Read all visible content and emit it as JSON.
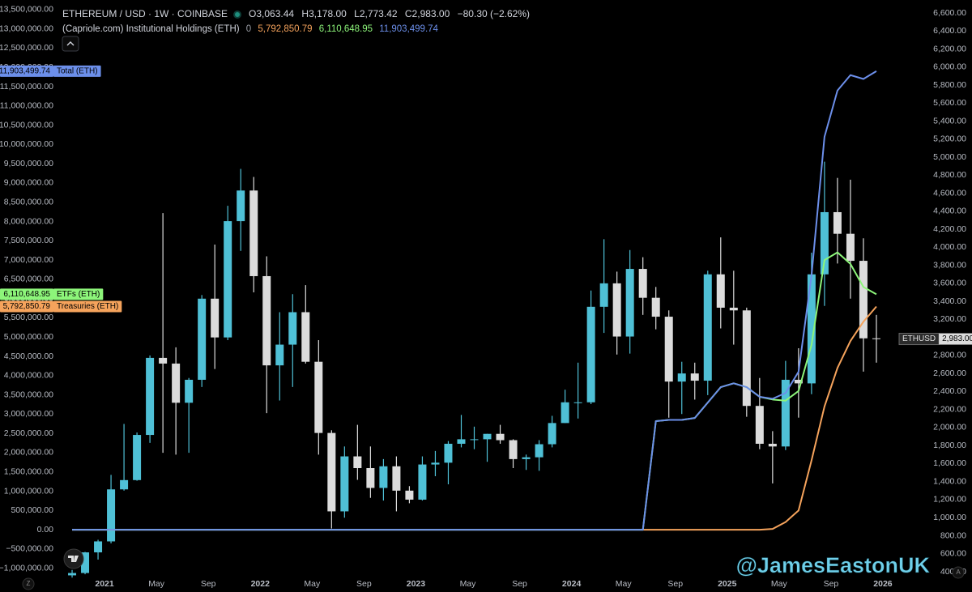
{
  "chart_data": [
    {
      "type": "candlestick",
      "title": "ETHEREUM / USD · 1W · COINBASE",
      "ohlc_labels": [
        "O3,063.44",
        "H3,178.00",
        "L2,773.42",
        "C2,983.00"
      ],
      "change_label": "−80.30 (−2.62%)",
      "name": "ETHUSD",
      "price_label": "2,983.00",
      "up_color": "#4fc0d6",
      "down_color": "#dcdcdc",
      "axis_side": "right",
      "x": [
        "2020-10",
        "2020-11",
        "2020-12",
        "2021-01",
        "2021-02",
        "2021-03",
        "2021-04",
        "2021-05",
        "2021-06",
        "2021-07",
        "2021-08",
        "2021-09",
        "2021-10",
        "2021-11",
        "2021-12",
        "2022-01",
        "2022-02",
        "2022-03",
        "2022-04",
        "2022-05",
        "2022-06",
        "2022-07",
        "2022-08",
        "2022-09",
        "2022-10",
        "2022-11",
        "2022-12",
        "2023-01",
        "2023-02",
        "2023-03",
        "2023-04",
        "2023-05",
        "2023-06",
        "2023-07",
        "2023-08",
        "2023-09",
        "2023-10",
        "2023-11",
        "2023-12",
        "2024-01",
        "2024-02",
        "2024-03",
        "2024-04",
        "2024-05",
        "2024-06",
        "2024-07",
        "2024-08",
        "2024-09",
        "2024-10",
        "2024-11",
        "2024-12",
        "2025-01",
        "2025-02",
        "2025-03",
        "2025-04",
        "2025-05",
        "2025-06",
        "2025-07",
        "2025-08",
        "2025-09",
        "2025-10",
        "2025-11",
        "2025-12"
      ],
      "open": [
        360,
        386,
        615,
        737,
        1314,
        1417,
        1918,
        2773,
        2710,
        2275,
        2530,
        3430,
        3000,
        4290,
        4630,
        3680,
        2690,
        2920,
        3280,
        2730,
        1940,
        1070,
        1680,
        1550,
        1330,
        1570,
        1300,
        1200,
        1590,
        1610,
        1820,
        1870,
        1870,
        1930,
        1860,
        1650,
        1670,
        1815,
        2050,
        2280,
        2280,
        3340,
        3600,
        3010,
        3760,
        3440,
        3230,
        2510,
        2600,
        2520,
        3700,
        3330,
        3300,
        2240,
        1820,
        1790,
        2530,
        2490,
        3700,
        4390,
        4150,
        3850,
        2990
      ],
      "high": [
        420,
        620,
        755,
        1475,
        2040,
        1945,
        2800,
        4380,
        2890,
        2550,
        3470,
        4030,
        4460,
        4870,
        4780,
        3900,
        3280,
        3480,
        3580,
        2970,
        1970,
        1790,
        2030,
        1790,
        1650,
        1680,
        1350,
        1680,
        1740,
        1850,
        2140,
        2010,
        1930,
        2030,
        1870,
        1700,
        1860,
        2130,
        2420,
        2720,
        3520,
        4090,
        3730,
        3970,
        3890,
        3560,
        3300,
        2730,
        2720,
        3740,
        4110,
        3740,
        3330,
        2550,
        1960,
        2740,
        2880,
        3940,
        4950,
        4770,
        4750,
        4100,
        3250
      ],
      "low": [
        335,
        372,
        535,
        715,
        1300,
        1410,
        1830,
        1720,
        1700,
        1720,
        2450,
        2650,
        2970,
        3960,
        3500,
        2160,
        2300,
        2450,
        2710,
        1700,
        880,
        1000,
        1420,
        1220,
        1190,
        1070,
        1160,
        1190,
        1460,
        1370,
        1780,
        1760,
        1620,
        1820,
        1550,
        1530,
        1520,
        1780,
        2050,
        2100,
        2260,
        3050,
        2810,
        2820,
        3250,
        3090,
        2110,
        2150,
        2310,
        2360,
        3100,
        2920,
        2120,
        1760,
        1380,
        1750,
        2110,
        2370,
        3350,
        3820,
        3430,
        2620,
        2720
      ],
      "close": [
        386,
        615,
        737,
        1314,
        1417,
        1918,
        2773,
        2710,
        2275,
        2530,
        3430,
        3000,
        4290,
        4630,
        3680,
        2690,
        2920,
        3280,
        2730,
        1940,
        1070,
        1680,
        1550,
        1330,
        1570,
        1300,
        1200,
        1590,
        1610,
        1820,
        1870,
        1870,
        1930,
        1860,
        1650,
        1670,
        1815,
        2050,
        2280,
        2280,
        3340,
        3600,
        3010,
        3760,
        3440,
        3230,
        2510,
        2600,
        2520,
        3700,
        3330,
        3300,
        2240,
        1820,
        1790,
        2530,
        2490,
        3700,
        4390,
        4150,
        3850,
        2990,
        2983
      ],
      "xlim": [
        "2020-09",
        "2026-03"
      ],
      "xticks": [
        {
          "value": "2021-01",
          "label": "2021"
        },
        {
          "value": "2021-05",
          "label": "May"
        },
        {
          "value": "2021-09",
          "label": "Sep"
        },
        {
          "value": "2022-01",
          "label": "2022"
        },
        {
          "value": "2022-05",
          "label": "May"
        },
        {
          "value": "2022-09",
          "label": "Sep"
        },
        {
          "value": "2023-01",
          "label": "2023"
        },
        {
          "value": "2023-05",
          "label": "May"
        },
        {
          "value": "2023-09",
          "label": "Sep"
        },
        {
          "value": "2024-01",
          "label": "2024"
        },
        {
          "value": "2024-05",
          "label": "May"
        },
        {
          "value": "2024-09",
          "label": "Sep"
        },
        {
          "value": "2025-01",
          "label": "2025"
        },
        {
          "value": "2025-05",
          "label": "May"
        },
        {
          "value": "2025-09",
          "label": "Sep"
        },
        {
          "value": "2026-01",
          "label": "2026"
        }
      ],
      "ylim": [
        319,
        6744
      ],
      "yticks": [
        {
          "value": 400,
          "label": "400.00"
        },
        {
          "value": 600,
          "label": "600.00"
        },
        {
          "value": 800,
          "label": "800.00"
        },
        {
          "value": 1000,
          "label": "1,000.00"
        },
        {
          "value": 1200,
          "label": "1,200.00"
        },
        {
          "value": 1400,
          "label": "1,400.00"
        },
        {
          "value": 1600,
          "label": "1,600.00"
        },
        {
          "value": 1800,
          "label": "1,800.00"
        },
        {
          "value": 2000,
          "label": "2,000.00"
        },
        {
          "value": 2200,
          "label": "2,200.00"
        },
        {
          "value": 2400,
          "label": "2,400.00"
        },
        {
          "value": 2600,
          "label": "2,600.00"
        },
        {
          "value": 2800,
          "label": "2,800.00"
        },
        {
          "value": 3000,
          "label": "3,000.00"
        },
        {
          "value": 3200,
          "label": "3,200.00"
        },
        {
          "value": 3400,
          "label": "3,400.00"
        },
        {
          "value": 3600,
          "label": "3,600.00"
        },
        {
          "value": 3800,
          "label": "3,800.00"
        },
        {
          "value": 4000,
          "label": "4,000.00"
        },
        {
          "value": 4200,
          "label": "4,200.00"
        },
        {
          "value": 4400,
          "label": "4,400.00"
        },
        {
          "value": 4600,
          "label": "4,600.00"
        },
        {
          "value": 4800,
          "label": "4,800.00"
        },
        {
          "value": 5000,
          "label": "5,000.00"
        },
        {
          "value": 5200,
          "label": "5,200.00"
        },
        {
          "value": 5400,
          "label": "5,400.00"
        },
        {
          "value": 5600,
          "label": "5,600.00"
        },
        {
          "value": 5800,
          "label": "5,800.00"
        },
        {
          "value": 6000,
          "label": "6,000.00"
        },
        {
          "value": 6200,
          "label": "6,200.00"
        },
        {
          "value": 6400,
          "label": "6,400.00"
        },
        {
          "value": 6600,
          "label": "6,600.00"
        }
      ]
    },
    {
      "type": "line",
      "title": "(Capriole.com) Institutional Holdings (ETH)",
      "extra_value_label": "0",
      "axis_side": "left",
      "x": [
        "2020-10",
        "2020-11",
        "2020-12",
        "2021-01",
        "2021-02",
        "2021-03",
        "2021-04",
        "2021-05",
        "2021-06",
        "2021-07",
        "2021-08",
        "2021-09",
        "2021-10",
        "2021-11",
        "2021-12",
        "2022-01",
        "2022-02",
        "2022-03",
        "2022-04",
        "2022-05",
        "2022-06",
        "2022-07",
        "2022-08",
        "2022-09",
        "2022-10",
        "2022-11",
        "2022-12",
        "2023-01",
        "2023-02",
        "2023-03",
        "2023-04",
        "2023-05",
        "2023-06",
        "2023-07",
        "2023-08",
        "2023-09",
        "2023-10",
        "2023-11",
        "2023-12",
        "2024-01",
        "2024-02",
        "2024-03",
        "2024-04",
        "2024-05",
        "2024-06",
        "2024-07",
        "2024-08",
        "2024-09",
        "2024-10",
        "2024-11",
        "2024-12",
        "2025-01",
        "2025-02",
        "2025-03",
        "2025-04",
        "2025-05",
        "2025-06",
        "2025-07",
        "2025-08",
        "2025-09",
        "2025-10",
        "2025-11",
        "2025-12"
      ],
      "xlim": [
        "2020-09",
        "2026-03"
      ],
      "series": [
        {
          "name": "Treasuries (ETH)",
          "color": "#f5a35c",
          "last_label": "5,792,850.79",
          "values": [
            0,
            0,
            0,
            0,
            0,
            0,
            0,
            0,
            0,
            0,
            0,
            0,
            0,
            0,
            0,
            0,
            0,
            0,
            0,
            0,
            0,
            0,
            0,
            0,
            0,
            0,
            0,
            0,
            0,
            0,
            0,
            0,
            0,
            0,
            0,
            0,
            0,
            0,
            0,
            0,
            0,
            0,
            0,
            0,
            0,
            0,
            0,
            0,
            0,
            0,
            0,
            0,
            0,
            0,
            20000,
            200000,
            500000,
            1800000,
            3200000,
            4200000,
            4900000,
            5400000,
            5792850.79
          ]
        },
        {
          "name": "ETFs (ETH)",
          "color": "#8df57a",
          "last_label": "6,110,648.95",
          "values": [
            0,
            0,
            0,
            0,
            0,
            0,
            0,
            0,
            0,
            0,
            0,
            0,
            0,
            0,
            0,
            0,
            0,
            0,
            0,
            0,
            0,
            0,
            0,
            0,
            0,
            0,
            0,
            0,
            0,
            0,
            0,
            0,
            0,
            0,
            0,
            0,
            0,
            0,
            0,
            0,
            0,
            0,
            0,
            0,
            0,
            2820000,
            2850000,
            2850000,
            2900000,
            3300000,
            3700000,
            3800000,
            3700000,
            3450000,
            3380000,
            3350000,
            3600000,
            4800000,
            7000000,
            7200000,
            6900000,
            6300000,
            6110648.95
          ]
        },
        {
          "name": "Total (ETH)",
          "color": "#6c8fea",
          "last_label": "11,903,499.74",
          "values": [
            0,
            0,
            0,
            0,
            0,
            0,
            0,
            0,
            0,
            0,
            0,
            0,
            0,
            0,
            0,
            0,
            0,
            0,
            0,
            0,
            0,
            0,
            0,
            0,
            0,
            0,
            0,
            0,
            0,
            0,
            0,
            0,
            0,
            0,
            0,
            0,
            0,
            0,
            0,
            0,
            0,
            0,
            0,
            0,
            0,
            2820000,
            2850000,
            2850000,
            2900000,
            3300000,
            3700000,
            3800000,
            3700000,
            3450000,
            3400000,
            3550000,
            4100000,
            6600000,
            10200000,
            11400000,
            11800000,
            11700000,
            11903499.74
          ]
        }
      ],
      "ylim": [
        -1280000,
        13750000
      ],
      "yticks": [
        {
          "value": -1000000,
          "label": "−1,000,000.00"
        },
        {
          "value": -500000,
          "label": "−500,000.00"
        },
        {
          "value": 0,
          "label": "0.00"
        },
        {
          "value": 500000,
          "label": "500,000.00"
        },
        {
          "value": 1000000,
          "label": "1,000,000.00"
        },
        {
          "value": 1500000,
          "label": "1,500,000.00"
        },
        {
          "value": 2000000,
          "label": "2,000,000.00"
        },
        {
          "value": 2500000,
          "label": "2,500,000.00"
        },
        {
          "value": 3000000,
          "label": "3,000,000.00"
        },
        {
          "value": 3500000,
          "label": "3,500,000.00"
        },
        {
          "value": 4000000,
          "label": "4,000,000.00"
        },
        {
          "value": 4500000,
          "label": "4,500,000.00"
        },
        {
          "value": 5000000,
          "label": "5,000,000.00"
        },
        {
          "value": 5500000,
          "label": "5,500,000.00"
        },
        {
          "value": 6000000,
          "label": "6,000,000.00"
        },
        {
          "value": 6500000,
          "label": "6,500,000.00"
        },
        {
          "value": 7000000,
          "label": "7,000,000.00"
        },
        {
          "value": 7500000,
          "label": "7,500,000.00"
        },
        {
          "value": 8000000,
          "label": "8,000,000.00"
        },
        {
          "value": 8500000,
          "label": "8,500,000.00"
        },
        {
          "value": 9000000,
          "label": "9,000,000.00"
        },
        {
          "value": 9500000,
          "label": "9,500,000.00"
        },
        {
          "value": 10000000,
          "label": "10,000,000.00"
        },
        {
          "value": 10500000,
          "label": "10,500,000.00"
        },
        {
          "value": 11000000,
          "label": "11,000,000.00"
        },
        {
          "value": 11500000,
          "label": "11,500,000.00"
        },
        {
          "value": 12000000,
          "label": "12,000,000.00"
        },
        {
          "value": 12500000,
          "label": "12,500,000.00"
        },
        {
          "value": 13000000,
          "label": "13,000,000.00"
        },
        {
          "value": 13500000,
          "label": "13,500,000.00"
        }
      ]
    }
  ],
  "watermark": "@JamesEastonUK",
  "scale_buttons": {
    "left": "Z",
    "right": "A"
  }
}
